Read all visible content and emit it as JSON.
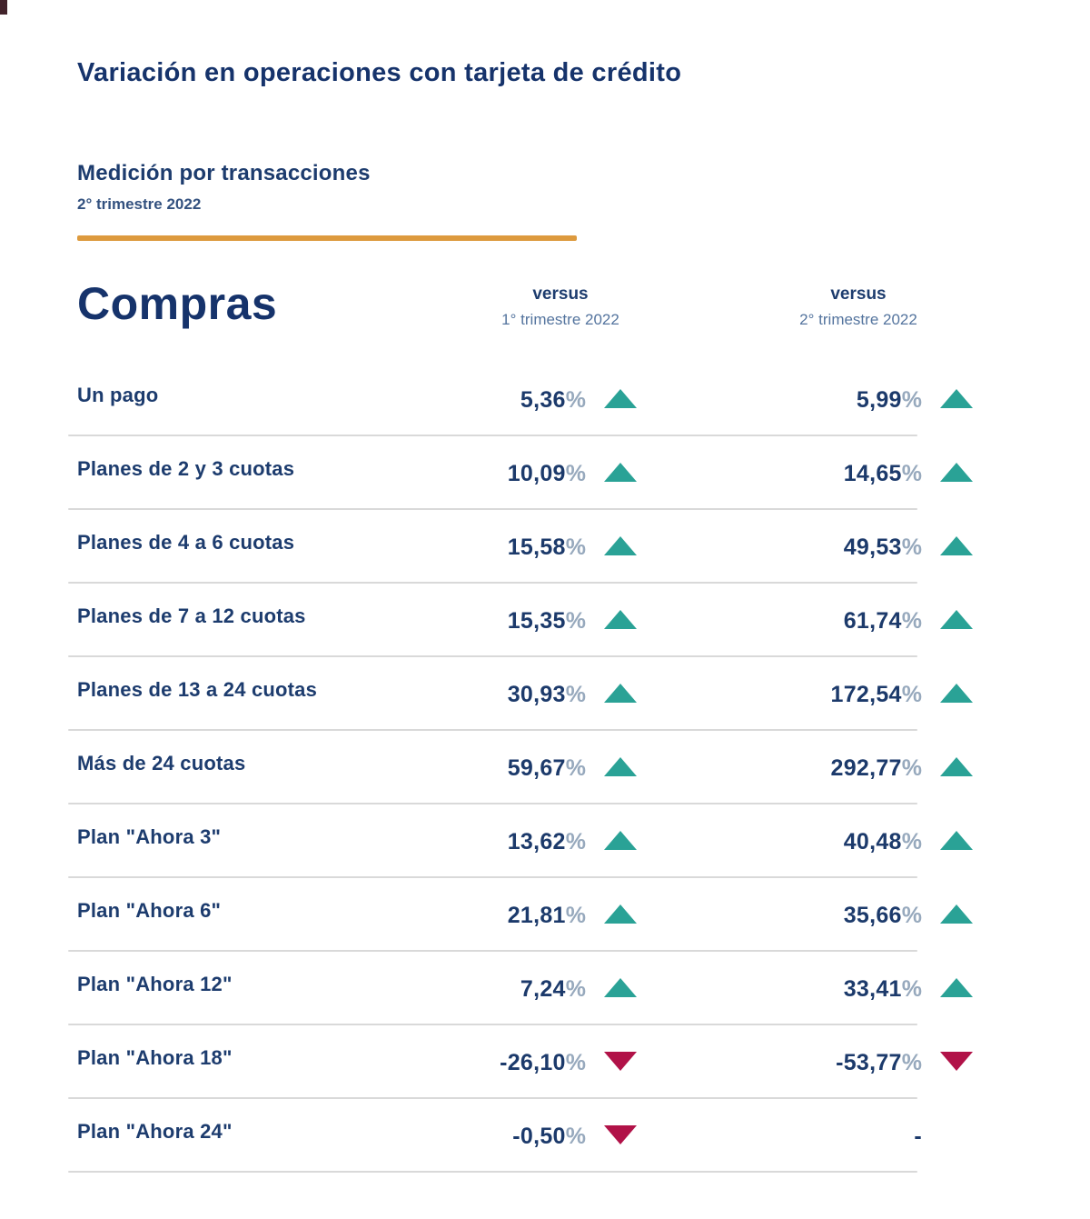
{
  "header": {
    "title": "Variación en operaciones con tarjeta de crédito",
    "section_title": "Medición por transacciones",
    "section_subtitle": "2° trimestre 2022"
  },
  "table": {
    "group_title": "Compras",
    "columns": [
      {
        "label": "versus",
        "sublabel": "1° trimestre 2022"
      },
      {
        "label": "versus",
        "sublabel": "2° trimestre 2022"
      }
    ],
    "rows": [
      {
        "label": "Un pago",
        "col1": {
          "value": "5,36",
          "pct": "%",
          "dir": "up"
        },
        "col2": {
          "value": "5,99",
          "pct": "%",
          "dir": "up"
        }
      },
      {
        "label": "Planes de 2 y 3 cuotas",
        "col1": {
          "value": "10,09",
          "pct": "%",
          "dir": "up"
        },
        "col2": {
          "value": "14,65",
          "pct": "%",
          "dir": "up"
        }
      },
      {
        "label": "Planes de 4 a 6 cuotas",
        "col1": {
          "value": "15,58",
          "pct": "%",
          "dir": "up"
        },
        "col2": {
          "value": "49,53",
          "pct": "%",
          "dir": "up"
        }
      },
      {
        "label": "Planes de 7 a 12 cuotas",
        "col1": {
          "value": "15,35",
          "pct": "%",
          "dir": "up"
        },
        "col2": {
          "value": "61,74",
          "pct": "%",
          "dir": "up"
        }
      },
      {
        "label": "Planes de 13 a 24 cuotas",
        "col1": {
          "value": "30,93",
          "pct": "%",
          "dir": "up"
        },
        "col2": {
          "value": "172,54",
          "pct": "%",
          "dir": "up"
        }
      },
      {
        "label": "Más de 24 cuotas",
        "col1": {
          "value": "59,67",
          "pct": "%",
          "dir": "up"
        },
        "col2": {
          "value": "292,77",
          "pct": "%",
          "dir": "up"
        }
      },
      {
        "label": "Plan \"Ahora 3\"",
        "col1": {
          "value": "13,62",
          "pct": "%",
          "dir": "up"
        },
        "col2": {
          "value": "40,48",
          "pct": "%",
          "dir": "up"
        }
      },
      {
        "label": "Plan \"Ahora 6\"",
        "col1": {
          "value": "21,81",
          "pct": "%",
          "dir": "up"
        },
        "col2": {
          "value": "35,66",
          "pct": "%",
          "dir": "up"
        }
      },
      {
        "label": "Plan \"Ahora 12\"",
        "col1": {
          "value": "7,24",
          "pct": "%",
          "dir": "up"
        },
        "col2": {
          "value": "33,41",
          "pct": "%",
          "dir": "up"
        }
      },
      {
        "label": "Plan \"Ahora 18\"",
        "col1": {
          "value": "-26,10",
          "pct": "%",
          "dir": "down"
        },
        "col2": {
          "value": "-53,77",
          "pct": "%",
          "dir": "down"
        }
      },
      {
        "label": "Plan \"Ahora 24\"",
        "col1": {
          "value": "-0,50",
          "pct": "%",
          "dir": "down"
        },
        "col2": {
          "value": "-",
          "pct": "",
          "dir": "none"
        }
      }
    ]
  },
  "colors": {
    "navy_text": "#1c3a6b",
    "percent_sign": "#97a9bd",
    "up_triangle": "#2aa296",
    "down_triangle": "#b11248",
    "orange_rule": "#dd9a3e",
    "row_separator": "#d9d9d9",
    "background": "#ffffff"
  },
  "chart_data": {
    "type": "table",
    "title": "Variación en operaciones con tarjeta de crédito",
    "subtitle": "Medición por transacciones — 2° trimestre 2022",
    "group": "Compras",
    "columns": [
      "versus 1° trimestre 2022",
      "versus 2° trimestre 2022"
    ],
    "unit": "percent",
    "rows": [
      {
        "category": "Un pago",
        "vs_1t_2022": 5.36,
        "vs_1t_dir": "up",
        "vs_2t_2022": 5.99,
        "vs_2t_dir": "up"
      },
      {
        "category": "Planes de 2 y 3 cuotas",
        "vs_1t_2022": 10.09,
        "vs_1t_dir": "up",
        "vs_2t_2022": 14.65,
        "vs_2t_dir": "up"
      },
      {
        "category": "Planes de 4 a 6 cuotas",
        "vs_1t_2022": 15.58,
        "vs_1t_dir": "up",
        "vs_2t_2022": 49.53,
        "vs_2t_dir": "up"
      },
      {
        "category": "Planes de 7 a 12 cuotas",
        "vs_1t_2022": 15.35,
        "vs_1t_dir": "up",
        "vs_2t_2022": 61.74,
        "vs_2t_dir": "up"
      },
      {
        "category": "Planes de 13 a 24 cuotas",
        "vs_1t_2022": 30.93,
        "vs_1t_dir": "up",
        "vs_2t_2022": 172.54,
        "vs_2t_dir": "up"
      },
      {
        "category": "Más de 24 cuotas",
        "vs_1t_2022": 59.67,
        "vs_1t_dir": "up",
        "vs_2t_2022": 292.77,
        "vs_2t_dir": "up"
      },
      {
        "category": "Plan \"Ahora 3\"",
        "vs_1t_2022": 13.62,
        "vs_1t_dir": "up",
        "vs_2t_2022": 40.48,
        "vs_2t_dir": "up"
      },
      {
        "category": "Plan \"Ahora 6\"",
        "vs_1t_2022": 21.81,
        "vs_1t_dir": "up",
        "vs_2t_2022": 35.66,
        "vs_2t_dir": "up"
      },
      {
        "category": "Plan \"Ahora 12\"",
        "vs_1t_2022": 7.24,
        "vs_1t_dir": "up",
        "vs_2t_2022": 33.41,
        "vs_2t_dir": "up"
      },
      {
        "category": "Plan \"Ahora 18\"",
        "vs_1t_2022": -26.1,
        "vs_1t_dir": "down",
        "vs_2t_2022": -53.77,
        "vs_2t_dir": "down"
      },
      {
        "category": "Plan \"Ahora 24\"",
        "vs_1t_2022": -0.5,
        "vs_1t_dir": "down",
        "vs_2t_2022": null,
        "vs_2t_dir": "none"
      }
    ]
  }
}
